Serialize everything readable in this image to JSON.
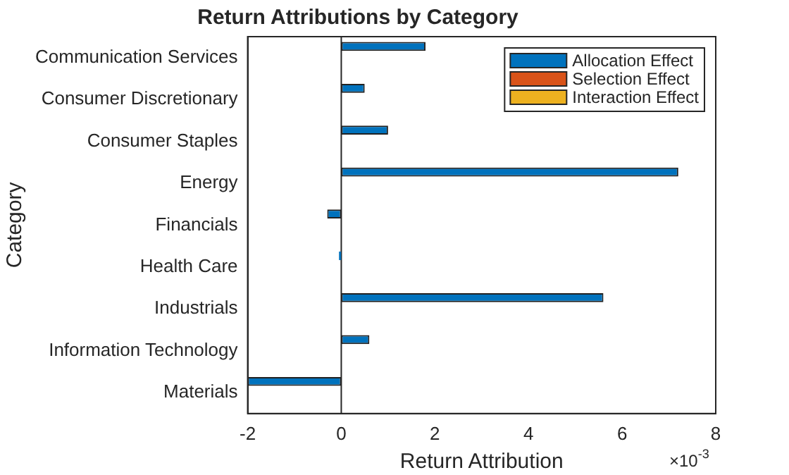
{
  "chart_data": {
    "type": "bar",
    "orientation": "horizontal",
    "title": "Return Attributions by Category",
    "xlabel": "Return Attribution",
    "ylabel": "Category",
    "categories": [
      "Communication Services",
      "Consumer Discretionary",
      "Consumer Staples",
      "Energy",
      "Financials",
      "Health Care",
      "Industrials",
      "Information Technology",
      "Materials"
    ],
    "series": [
      {
        "name": "Allocation Effect",
        "color": "#0072bd",
        "values": [
          1.8,
          0.5,
          1.0,
          7.2,
          -0.3,
          -0.05,
          5.6,
          0.6,
          -2.0
        ]
      },
      {
        "name": "Selection Effect",
        "color": "#d95319",
        "values": [
          0,
          0,
          0,
          0,
          0,
          0,
          0,
          0,
          0
        ]
      },
      {
        "name": "Interaction Effect",
        "color": "#edb120",
        "values": [
          0,
          0,
          0,
          0,
          0,
          0,
          0,
          0,
          0
        ]
      }
    ],
    "xlim": [
      -2,
      8
    ],
    "xticks": [
      -2,
      0,
      2,
      4,
      6,
      8
    ],
    "annotations": [
      "×10$^{-3}$"
    ],
    "ref_lines": [
      {
        "axis": "x",
        "value": 0,
        "color": "#262626"
      }
    ],
    "legend": "top right",
    "grid": false
  }
}
